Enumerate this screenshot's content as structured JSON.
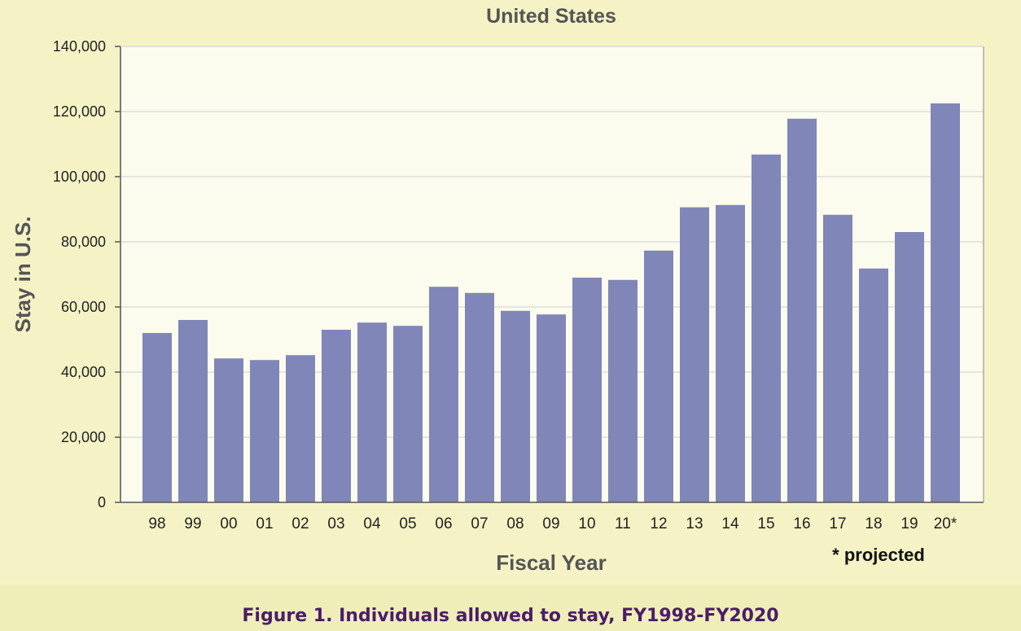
{
  "caption": "Figure 1. Individuals allowed to stay, FY1998-FY2020",
  "footnote": "* projected",
  "colors": {
    "background": "#f5f3c6",
    "plot_background": "#fbfbee",
    "bar": "#8086b8",
    "caption": "#4b1d6a",
    "axis_text": "#555555"
  },
  "chart_data": {
    "type": "bar",
    "title": "United States",
    "xlabel": "Fiscal Year",
    "ylabel": "Stay in U.S.",
    "ylim": [
      0,
      140000
    ],
    "yticks": [
      0,
      20000,
      40000,
      60000,
      80000,
      100000,
      120000,
      140000
    ],
    "ytick_labels": [
      "0",
      "20,000",
      "40,000",
      "60,000",
      "80,000",
      "100,000",
      "120,000",
      "140,000"
    ],
    "grid": true,
    "categories": [
      "98",
      "99",
      "00",
      "01",
      "02",
      "03",
      "04",
      "05",
      "06",
      "07",
      "08",
      "09",
      "10",
      "11",
      "12",
      "13",
      "14",
      "15",
      "16",
      "17",
      "18",
      "19",
      "20*"
    ],
    "values": [
      52000,
      56000,
      44200,
      43700,
      45200,
      53000,
      55200,
      54200,
      66200,
      64300,
      58800,
      57700,
      69000,
      68300,
      77300,
      90600,
      91300,
      106800,
      117800,
      88300,
      71800,
      83000,
      122500
    ]
  }
}
